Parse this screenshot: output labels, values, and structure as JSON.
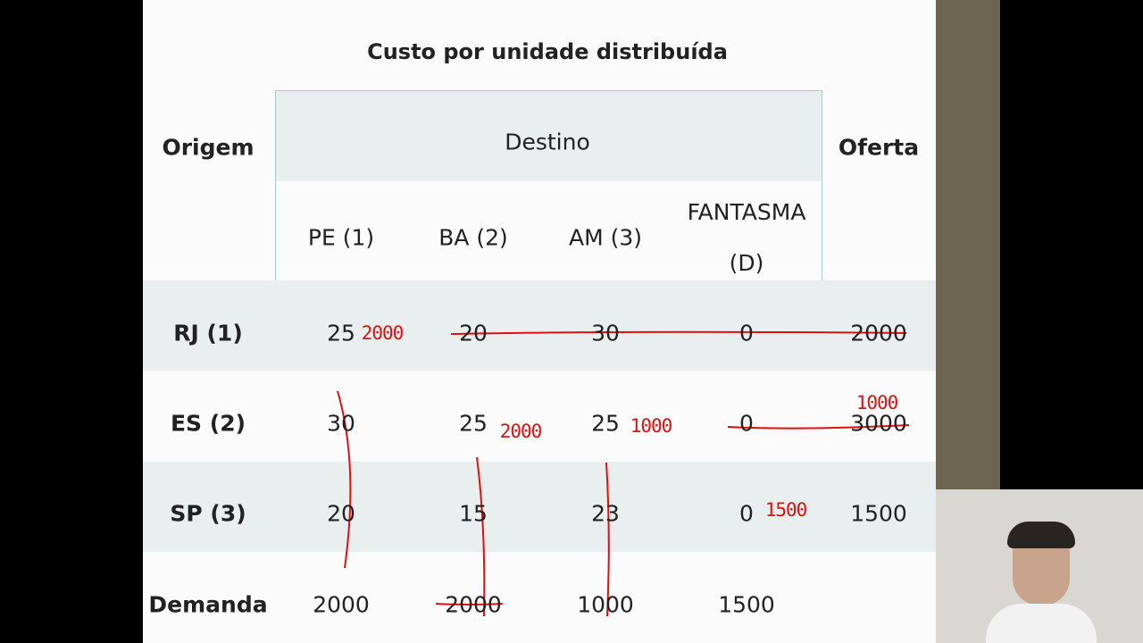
{
  "title": "Custo por unidade distribuída",
  "table": {
    "header": {
      "origin": "Origem",
      "destination": "Destino",
      "supply": "Oferta",
      "columns": [
        "PE (1)",
        "BA (2)",
        "AM (3)",
        "FANTASMA (D)"
      ]
    },
    "rows": [
      {
        "label": "RJ (1)",
        "cells": [
          25,
          20,
          30,
          0
        ],
        "supply": 2000
      },
      {
        "label": "ES (2)",
        "cells": [
          30,
          25,
          25,
          0
        ],
        "supply": 3000
      },
      {
        "label": "SP (3)",
        "cells": [
          20,
          15,
          23,
          0
        ],
        "supply": 1500
      }
    ],
    "demand": {
      "label": "Demanda",
      "cells": [
        2000,
        2000,
        1000,
        1500
      ]
    }
  },
  "annotations": [
    2000,
    2000,
    1000,
    1000,
    1500
  ]
}
